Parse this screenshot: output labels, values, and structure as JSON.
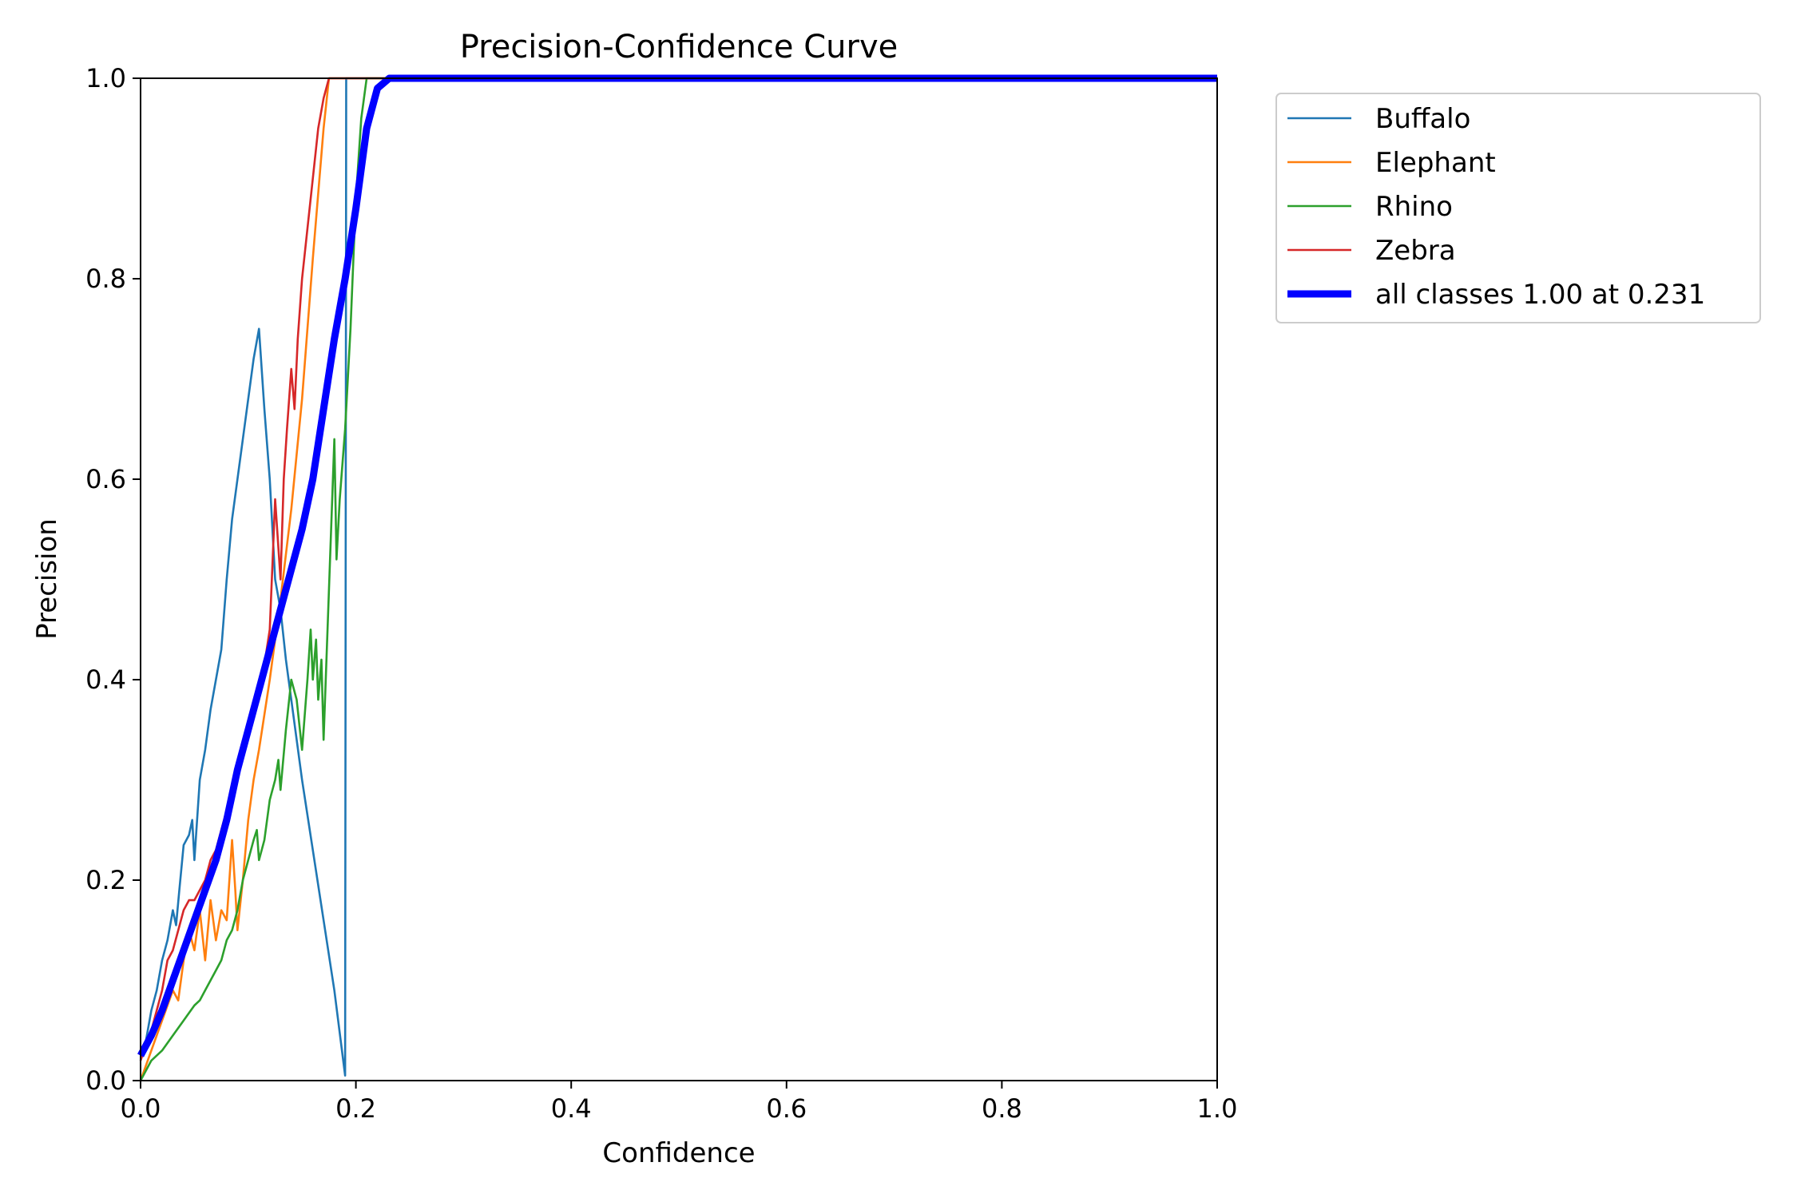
{
  "chart_data": {
    "type": "line",
    "title": "Precision-Confidence Curve",
    "xlabel": "Confidence",
    "ylabel": "Precision",
    "xlim": [
      0,
      1
    ],
    "ylim": [
      0,
      1
    ],
    "xticks": [
      "0.0",
      "0.2",
      "0.4",
      "0.6",
      "0.8",
      "1.0"
    ],
    "yticks": [
      "0.0",
      "0.2",
      "0.4",
      "0.6",
      "0.8",
      "1.0"
    ],
    "grid": false,
    "legend_position": "outside-upper-right",
    "series": [
      {
        "name": "Buffalo",
        "color": "#1f77b4",
        "x": [
          0.0,
          0.005,
          0.01,
          0.015,
          0.02,
          0.025,
          0.03,
          0.033,
          0.036,
          0.04,
          0.045,
          0.048,
          0.05,
          0.055,
          0.06,
          0.065,
          0.07,
          0.075,
          0.08,
          0.085,
          0.09,
          0.095,
          0.1,
          0.105,
          0.11,
          0.115,
          0.12,
          0.125,
          0.13,
          0.135,
          0.14,
          0.145,
          0.15,
          0.16,
          0.17,
          0.18,
          0.19,
          0.1905,
          0.191,
          1.0
        ],
        "y": [
          0.02,
          0.04,
          0.07,
          0.09,
          0.12,
          0.14,
          0.17,
          0.155,
          0.19,
          0.235,
          0.245,
          0.26,
          0.22,
          0.3,
          0.33,
          0.37,
          0.4,
          0.43,
          0.5,
          0.56,
          0.6,
          0.64,
          0.68,
          0.72,
          0.75,
          0.67,
          0.6,
          0.5,
          0.47,
          0.42,
          0.38,
          0.34,
          0.3,
          0.23,
          0.16,
          0.09,
          0.005,
          0.5,
          1.0,
          1.0
        ]
      },
      {
        "name": "Elephant",
        "color": "#ff7f0e",
        "x": [
          0.0,
          0.01,
          0.02,
          0.03,
          0.035,
          0.04,
          0.045,
          0.05,
          0.055,
          0.06,
          0.065,
          0.07,
          0.075,
          0.08,
          0.085,
          0.088,
          0.09,
          0.095,
          0.1,
          0.105,
          0.11,
          0.12,
          0.13,
          0.14,
          0.15,
          0.16,
          0.17,
          0.175,
          1.0
        ],
        "y": [
          0.0,
          0.03,
          0.06,
          0.09,
          0.08,
          0.12,
          0.15,
          0.13,
          0.17,
          0.12,
          0.18,
          0.14,
          0.17,
          0.16,
          0.24,
          0.19,
          0.15,
          0.2,
          0.26,
          0.3,
          0.33,
          0.4,
          0.48,
          0.57,
          0.68,
          0.82,
          0.95,
          1.0,
          1.0
        ]
      },
      {
        "name": "Rhino",
        "color": "#2ca02c",
        "x": [
          0.0,
          0.01,
          0.02,
          0.03,
          0.04,
          0.05,
          0.055,
          0.06,
          0.065,
          0.07,
          0.075,
          0.08,
          0.085,
          0.09,
          0.095,
          0.1,
          0.105,
          0.108,
          0.11,
          0.115,
          0.12,
          0.125,
          0.128,
          0.13,
          0.135,
          0.14,
          0.145,
          0.15,
          0.155,
          0.158,
          0.16,
          0.163,
          0.165,
          0.168,
          0.17,
          0.175,
          0.18,
          0.182,
          0.185,
          0.19,
          0.195,
          0.2,
          0.205,
          0.21,
          1.0
        ],
        "y": [
          0.0,
          0.02,
          0.03,
          0.045,
          0.06,
          0.075,
          0.08,
          0.09,
          0.1,
          0.11,
          0.12,
          0.14,
          0.15,
          0.17,
          0.2,
          0.22,
          0.24,
          0.25,
          0.22,
          0.24,
          0.28,
          0.3,
          0.32,
          0.29,
          0.35,
          0.4,
          0.38,
          0.33,
          0.4,
          0.45,
          0.4,
          0.44,
          0.38,
          0.42,
          0.34,
          0.49,
          0.64,
          0.52,
          0.58,
          0.65,
          0.75,
          0.88,
          0.96,
          1.0,
          1.0
        ]
      },
      {
        "name": "Zebra",
        "color": "#d62728",
        "x": [
          0.0,
          0.01,
          0.02,
          0.025,
          0.03,
          0.035,
          0.04,
          0.045,
          0.05,
          0.055,
          0.06,
          0.065,
          0.07,
          0.08,
          0.09,
          0.1,
          0.11,
          0.12,
          0.125,
          0.13,
          0.133,
          0.136,
          0.14,
          0.143,
          0.146,
          0.15,
          0.155,
          0.16,
          0.165,
          0.17,
          0.175,
          1.0
        ],
        "y": [
          0.02,
          0.05,
          0.09,
          0.12,
          0.13,
          0.15,
          0.17,
          0.18,
          0.18,
          0.19,
          0.2,
          0.22,
          0.23,
          0.27,
          0.31,
          0.35,
          0.38,
          0.45,
          0.58,
          0.5,
          0.6,
          0.65,
          0.71,
          0.67,
          0.74,
          0.8,
          0.85,
          0.9,
          0.95,
          0.98,
          1.0,
          1.0
        ]
      },
      {
        "name": "all classes 1.00 at 0.231",
        "color": "#0000ff",
        "bold": true,
        "x": [
          0.0,
          0.01,
          0.02,
          0.03,
          0.04,
          0.05,
          0.06,
          0.07,
          0.08,
          0.09,
          0.1,
          0.11,
          0.12,
          0.13,
          0.14,
          0.15,
          0.16,
          0.17,
          0.18,
          0.19,
          0.2,
          0.21,
          0.22,
          0.231,
          1.0
        ],
        "y": [
          0.025,
          0.045,
          0.07,
          0.1,
          0.13,
          0.16,
          0.19,
          0.22,
          0.26,
          0.31,
          0.35,
          0.39,
          0.43,
          0.47,
          0.51,
          0.55,
          0.6,
          0.67,
          0.74,
          0.8,
          0.87,
          0.95,
          0.99,
          1.0,
          1.0
        ]
      }
    ]
  }
}
